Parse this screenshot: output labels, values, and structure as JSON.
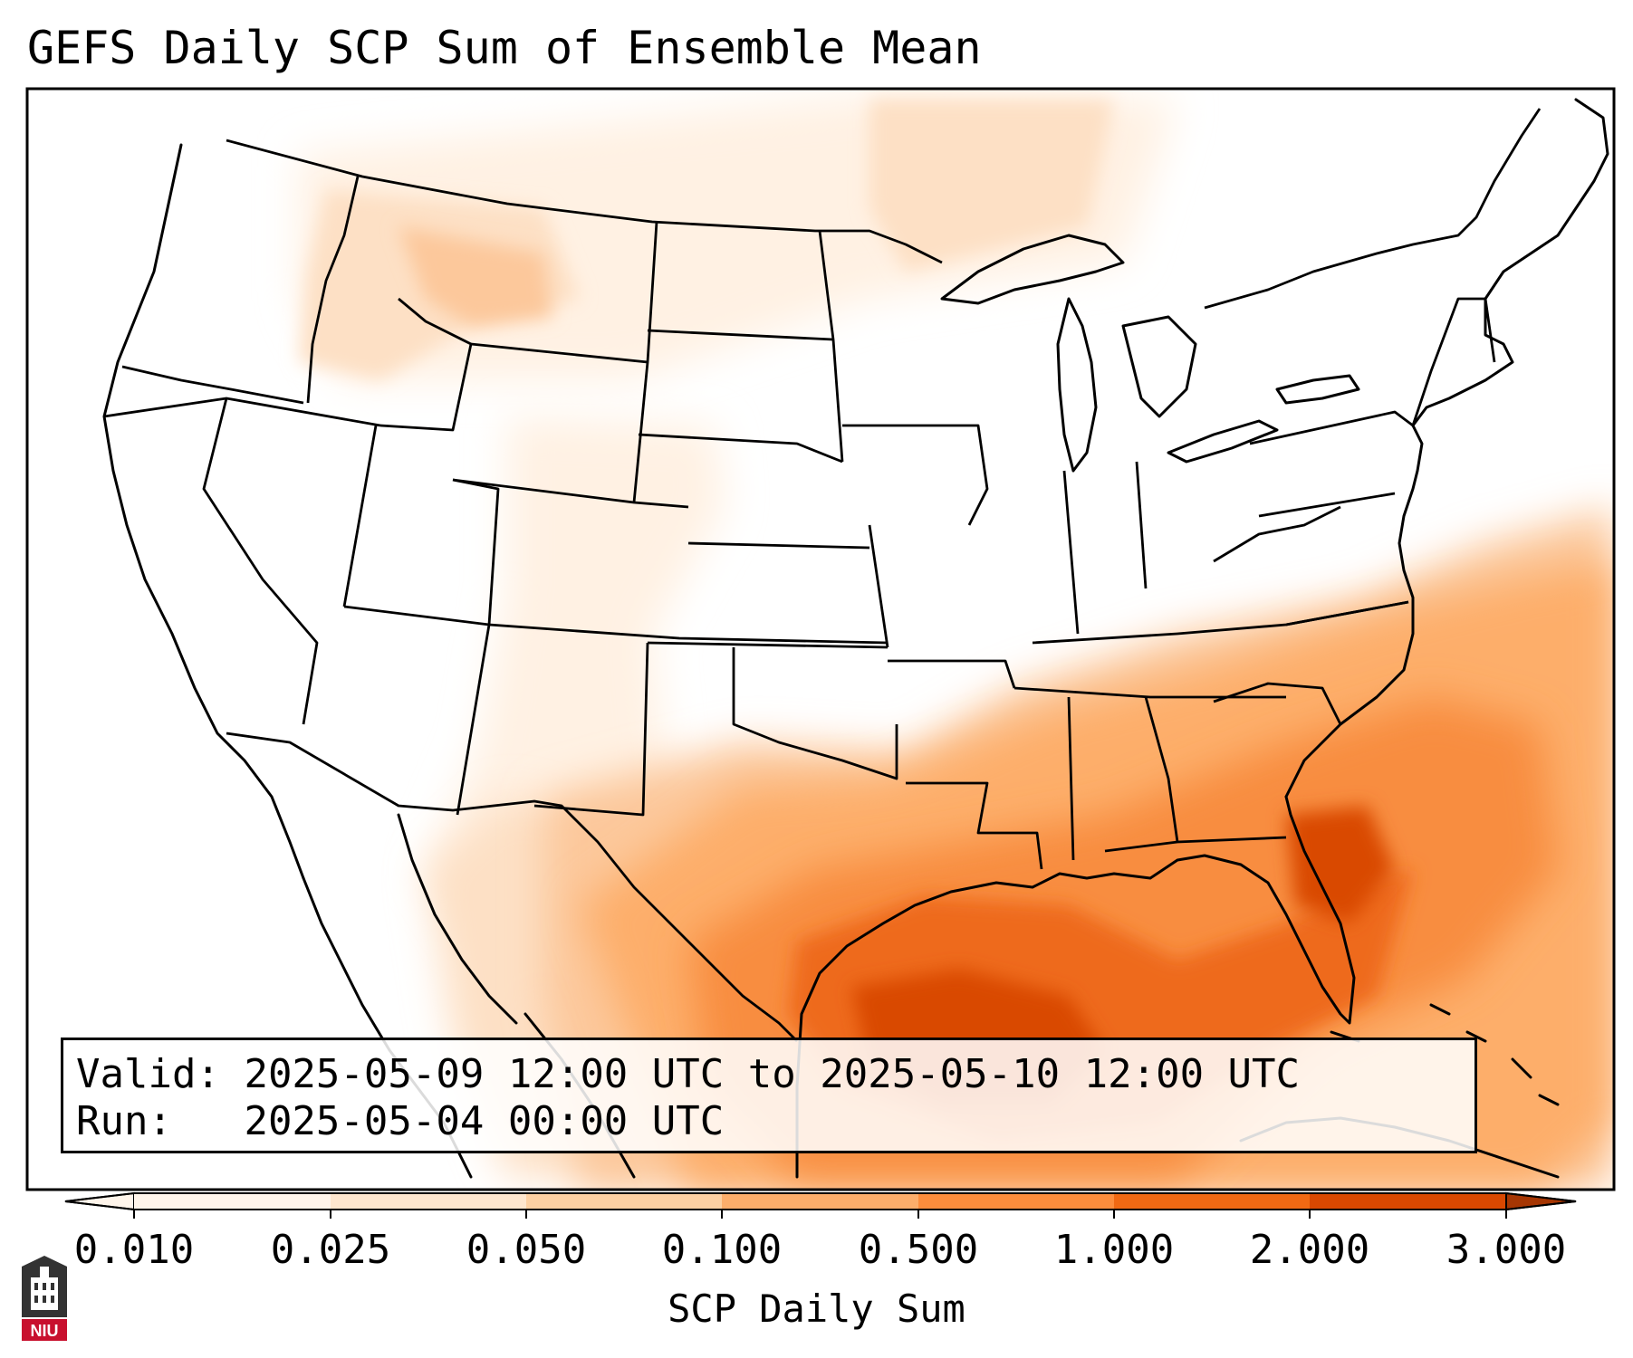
{
  "title": "GEFS Daily SCP Sum of Ensemble Mean",
  "info": {
    "valid_label": "Valid:",
    "valid_value": "2025-05-09 12:00 UTC to 2025-05-10 12:00 UTC",
    "run_label": "Run:",
    "run_value": "2025-05-04 00:00 UTC"
  },
  "colorbar": {
    "label": "SCP Daily Sum",
    "ticks": [
      "0.010",
      "0.025",
      "0.050",
      "0.100",
      "0.500",
      "1.000",
      "2.000",
      "3.000"
    ],
    "colors": [
      "#fff5eb",
      "#fee6ce",
      "#fdd0a2",
      "#fdae6b",
      "#fd8d3c",
      "#f16913",
      "#d94801",
      "#a63603"
    ],
    "extend": "both"
  },
  "logo": {
    "text": "NIU",
    "colors": {
      "body": "#333333",
      "band": "#c8102e"
    }
  },
  "map": {
    "region": "Continental United States",
    "fill_colors": {
      "very_light": "#fff1e3",
      "light": "#fde0c5",
      "light_mid": "#fcc89b",
      "mid": "#fdae6b",
      "orange": "#f88d3f",
      "dark": "#ee6a1a",
      "darker": "#d94801"
    },
    "line_color": "#000000"
  }
}
